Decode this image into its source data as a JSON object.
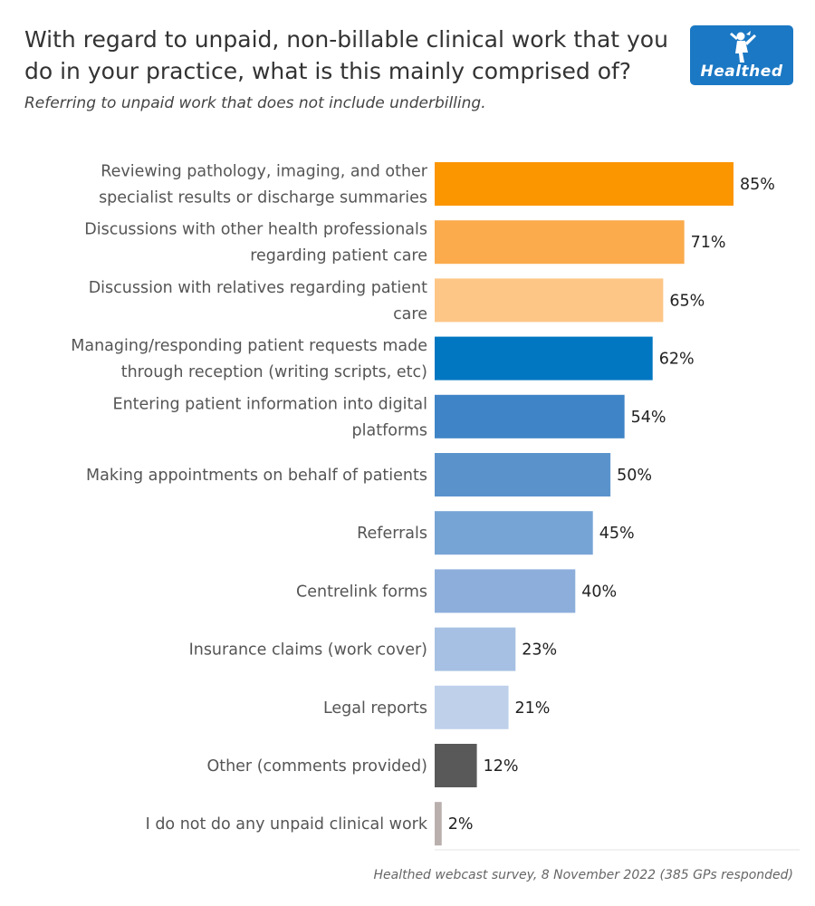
{
  "title": "With regard to unpaid, non-billable clinical work that you do in your practice, what is this mainly comprised of?",
  "subtitle": "Referring to unpaid work that does not include underbilling.",
  "logo": {
    "text": "Healthed",
    "icon": "hermes-figure-icon",
    "bg_color": "#1b78c4"
  },
  "source": "Healthed webcast survey, 8 November 2022 (385 GPs responded)",
  "chart_data": {
    "type": "bar",
    "orientation": "horizontal",
    "xlim": [
      0,
      100
    ],
    "grid": false,
    "value_suffix": "%",
    "categories": [
      [
        "Reviewing pathology, imaging, and other",
        "specialist results or discharge summaries"
      ],
      [
        "Discussions with other health professionals",
        "regarding patient care"
      ],
      [
        "Discussion with relatives regarding patient",
        "care"
      ],
      [
        "Managing/responding patient requests made",
        "through reception (writing scripts, etc)"
      ],
      [
        "Entering patient information into digital",
        "platforms"
      ],
      [
        "Making appointments on behalf of patients"
      ],
      [
        "Referrals"
      ],
      [
        "Centrelink forms"
      ],
      [
        "Insurance claims (work cover)"
      ],
      [
        "Legal reports"
      ],
      [
        "Other (comments provided)"
      ],
      [
        "I do not do any unpaid clinical work"
      ]
    ],
    "values": [
      85,
      71,
      65,
      62,
      54,
      50,
      45,
      40,
      23,
      21,
      12,
      2
    ],
    "colors": [
      "#fb9500",
      "#fbab4c",
      "#fec686",
      "#0177c1",
      "#3f84c6",
      "#5a93cc",
      "#76a4d5",
      "#8daedb",
      "#a6c0e3",
      "#bed0ea",
      "#595959",
      "#b9afad"
    ]
  }
}
